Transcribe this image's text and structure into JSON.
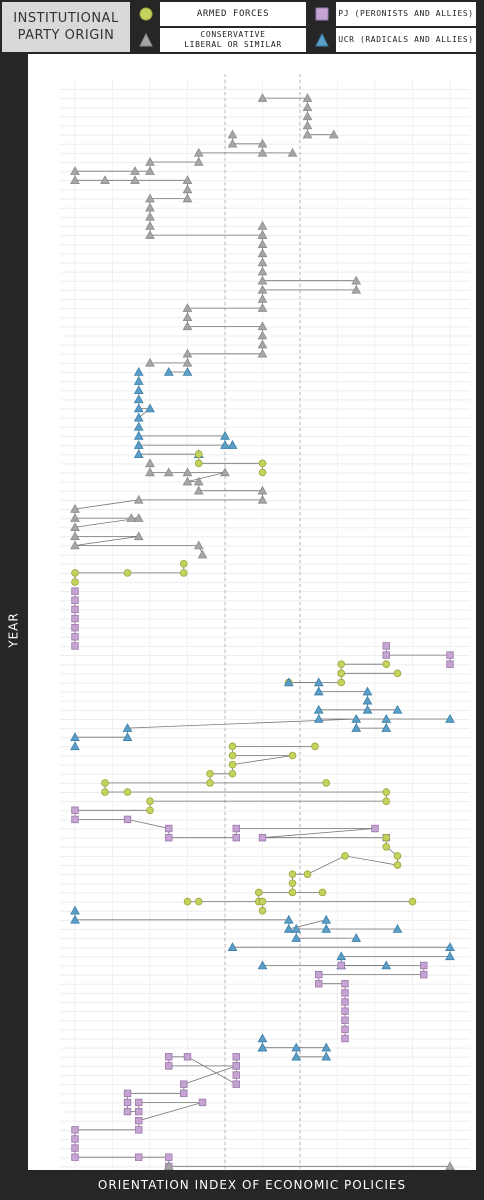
{
  "legend": {
    "title_line1": "INSTITUTIONAL",
    "title_line2": "PARTY ORIGIN",
    "items": [
      {
        "label": "ARMED FORCES",
        "shape": "circle",
        "color": "#c5d25e",
        "stroke": "#9aa63c"
      },
      {
        "label": "PJ (PERONISTS AND ALLIES)",
        "shape": "square",
        "color": "#c5a3d3",
        "stroke": "#9b78ab"
      },
      {
        "label_line1": "CONSERVATIVE",
        "label_line2": "LIBERAL OR SIMILAR",
        "shape": "triangle",
        "color": "#a6a6a6",
        "stroke": "#8c8c8c"
      },
      {
        "label": "UCR (RADICALS AND ALLIES)",
        "shape": "triangle",
        "color": "#5b9fc9",
        "stroke": "#3b7fa9"
      }
    ]
  },
  "chart_data": {
    "type": "scatter",
    "xlabel": "ORIENTATION INDEX OF ECONOMIC POLICIES",
    "ylabel": "YEAR",
    "xlim": [
      0,
      100
    ],
    "reference_lines_x": [
      40,
      60
    ],
    "grid": true,
    "segments": [
      {
        "party": "conservative",
        "points": [
          [
            50,
            1
          ],
          [
            62,
            1
          ],
          [
            62,
            2
          ],
          [
            62,
            3
          ],
          [
            62,
            4
          ],
          [
            62,
            5
          ],
          [
            69,
            5
          ]
        ]
      },
      {
        "party": "conservative",
        "points": [
          [
            42,
            5
          ],
          [
            42,
            6
          ],
          [
            50,
            6
          ],
          [
            50,
            7
          ],
          [
            58,
            7
          ],
          [
            33,
            7
          ],
          [
            33,
            8
          ],
          [
            20,
            8
          ],
          [
            20,
            9
          ],
          [
            16,
            9
          ],
          [
            0,
            9
          ],
          [
            0,
            10
          ],
          [
            8,
            10
          ],
          [
            16,
            10
          ],
          [
            30,
            10
          ],
          [
            30,
            11
          ],
          [
            30,
            12
          ],
          [
            20,
            12
          ],
          [
            20,
            13
          ],
          [
            20,
            14
          ],
          [
            20,
            15
          ],
          [
            20,
            16
          ],
          [
            50,
            16
          ]
        ]
      },
      {
        "party": "conservative",
        "points": [
          [
            50,
            15
          ],
          [
            50,
            16
          ],
          [
            50,
            17
          ],
          [
            50,
            18
          ],
          [
            50,
            19
          ],
          [
            50,
            20
          ],
          [
            50,
            21
          ],
          [
            75,
            21
          ],
          [
            75,
            22
          ],
          [
            50,
            22
          ],
          [
            50,
            23
          ],
          [
            50,
            24
          ],
          [
            30,
            24
          ],
          [
            30,
            25
          ],
          [
            30,
            26
          ],
          [
            50,
            26
          ],
          [
            50,
            27
          ],
          [
            50,
            28
          ],
          [
            50,
            29
          ],
          [
            30,
            29
          ],
          [
            30,
            30
          ],
          [
            20,
            30
          ]
        ]
      },
      {
        "party": "ucr",
        "points": [
          [
            25,
            31
          ],
          [
            30,
            31
          ]
        ]
      },
      {
        "party": "ucr",
        "points": [
          [
            17,
            31
          ],
          [
            17,
            32
          ],
          [
            17,
            33
          ],
          [
            17,
            34
          ],
          [
            17,
            35
          ],
          [
            20,
            35
          ],
          [
            17,
            36
          ],
          [
            17,
            37
          ],
          [
            17,
            38
          ],
          [
            40,
            38
          ],
          [
            40,
            39
          ],
          [
            42,
            39
          ],
          [
            17,
            39
          ],
          [
            17,
            40
          ],
          [
            33,
            40
          ]
        ]
      },
      {
        "party": "armed",
        "points": [
          [
            33,
            40
          ],
          [
            33,
            41
          ],
          [
            50,
            41
          ],
          [
            50,
            42
          ]
        ]
      },
      {
        "party": "conservative",
        "points": [
          [
            20,
            41
          ],
          [
            20,
            42
          ],
          [
            25,
            42
          ],
          [
            30,
            42
          ],
          [
            40,
            42
          ],
          [
            30,
            43
          ],
          [
            33,
            43
          ],
          [
            33,
            44
          ],
          [
            50,
            44
          ],
          [
            50,
            45
          ],
          [
            17,
            45
          ],
          [
            0,
            46
          ],
          [
            0,
            47
          ],
          [
            15,
            47
          ],
          [
            17,
            47
          ],
          [
            0,
            48
          ],
          [
            0,
            49
          ],
          [
            17,
            49
          ],
          [
            0,
            50
          ],
          [
            33,
            50
          ],
          [
            34,
            51
          ]
        ]
      },
      {
        "party": "armed",
        "points": [
          [
            29,
            52
          ],
          [
            29,
            53
          ],
          [
            14,
            53
          ],
          [
            0,
            53
          ],
          [
            0,
            54
          ]
        ]
      },
      {
        "party": "pj",
        "points": [
          [
            0,
            55
          ],
          [
            0,
            56
          ],
          [
            0,
            57
          ],
          [
            0,
            58
          ],
          [
            0,
            59
          ],
          [
            0,
            60
          ],
          [
            0,
            61
          ]
        ]
      },
      {
        "party": "pj",
        "points": [
          [
            83,
            61
          ],
          [
            83,
            62
          ],
          [
            100,
            62
          ],
          [
            100,
            63
          ]
        ]
      },
      {
        "party": "armed",
        "points": [
          [
            83,
            63
          ],
          [
            71,
            63
          ],
          [
            71,
            64
          ],
          [
            86,
            64
          ],
          [
            71,
            64
          ],
          [
            71,
            65
          ],
          [
            57,
            65
          ]
        ]
      },
      {
        "party": "ucr",
        "points": [
          [
            57,
            65
          ],
          [
            65,
            65
          ],
          [
            65,
            66
          ],
          [
            78,
            66
          ],
          [
            78,
            67
          ],
          [
            78,
            68
          ],
          [
            86,
            68
          ],
          [
            65,
            68
          ],
          [
            65,
            69
          ],
          [
            100,
            69
          ],
          [
            83,
            69
          ],
          [
            83,
            70
          ],
          [
            75,
            70
          ],
          [
            75,
            69
          ],
          [
            14,
            70
          ],
          [
            14,
            71
          ],
          [
            0,
            71
          ],
          [
            0,
            72
          ]
        ]
      },
      {
        "party": "armed",
        "points": [
          [
            64,
            72
          ],
          [
            42,
            72
          ],
          [
            42,
            73
          ],
          [
            58,
            73
          ],
          [
            42,
            74
          ],
          [
            42,
            75
          ],
          [
            36,
            75
          ],
          [
            36,
            76
          ],
          [
            67,
            76
          ],
          [
            8,
            76
          ],
          [
            8,
            77
          ],
          [
            14,
            77
          ],
          [
            83,
            77
          ],
          [
            83,
            78
          ],
          [
            20,
            78
          ],
          [
            20,
            79
          ],
          [
            0,
            79
          ]
        ]
      },
      {
        "party": "pj",
        "points": [
          [
            0,
            79
          ],
          [
            0,
            80
          ],
          [
            14,
            80
          ],
          [
            25,
            81
          ],
          [
            25,
            82
          ],
          [
            43,
            82
          ],
          [
            43,
            81
          ],
          [
            80,
            81
          ],
          [
            50,
            82
          ],
          [
            83,
            82
          ]
        ]
      },
      {
        "party": "armed",
        "points": [
          [
            83,
            82
          ],
          [
            83,
            83
          ],
          [
            86,
            84
          ],
          [
            86,
            85
          ],
          [
            72,
            84
          ],
          [
            62,
            86
          ],
          [
            58,
            86
          ],
          [
            58,
            87
          ],
          [
            58,
            88
          ],
          [
            66,
            88
          ],
          [
            49,
            88
          ],
          [
            49,
            89
          ],
          [
            90,
            89
          ],
          [
            30,
            89
          ],
          [
            33,
            89
          ],
          [
            50,
            89
          ],
          [
            50,
            90
          ]
        ]
      },
      {
        "party": "ucr",
        "points": [
          [
            0,
            90
          ],
          [
            0,
            91
          ],
          [
            57,
            91
          ],
          [
            57,
            92
          ],
          [
            67,
            91
          ],
          [
            67,
            92
          ],
          [
            86,
            92
          ],
          [
            59,
            92
          ],
          [
            59,
            93
          ],
          [
            75,
            93
          ]
        ]
      },
      {
        "party": "ucr",
        "points": [
          [
            42,
            94
          ],
          [
            100,
            94
          ],
          [
            100,
            95
          ],
          [
            71,
            95
          ],
          [
            71,
            96
          ],
          [
            50,
            96
          ],
          [
            83,
            96
          ]
        ]
      },
      {
        "party": "pj",
        "points": [
          [
            71,
            96
          ],
          [
            93,
            96
          ],
          [
            93,
            97
          ],
          [
            65,
            97
          ],
          [
            65,
            98
          ],
          [
            72,
            98
          ],
          [
            72,
            99
          ],
          [
            72,
            100
          ],
          [
            72,
            101
          ],
          [
            72,
            102
          ],
          [
            72,
            103
          ],
          [
            72,
            104
          ]
        ]
      },
      {
        "party": "ucr",
        "points": [
          [
            50,
            104
          ],
          [
            50,
            105
          ],
          [
            59,
            105
          ],
          [
            59,
            106
          ],
          [
            67,
            106
          ],
          [
            67,
            105
          ],
          [
            50,
            105
          ]
        ]
      },
      {
        "party": "pj",
        "points": [
          [
            43,
            106
          ],
          [
            43,
            107
          ],
          [
            43,
            108
          ],
          [
            43,
            109
          ],
          [
            30,
            106
          ],
          [
            25,
            106
          ],
          [
            25,
            107
          ],
          [
            43,
            107
          ],
          [
            29,
            109
          ],
          [
            29,
            110
          ],
          [
            14,
            110
          ],
          [
            14,
            111
          ],
          [
            14,
            112
          ],
          [
            17,
            112
          ],
          [
            17,
            111
          ],
          [
            34,
            111
          ],
          [
            17,
            113
          ],
          [
            17,
            114
          ],
          [
            0,
            114
          ],
          [
            0,
            115
          ],
          [
            0,
            116
          ],
          [
            0,
            117
          ],
          [
            17,
            117
          ],
          [
            25,
            117
          ],
          [
            25,
            118
          ]
        ]
      },
      {
        "party": "conservative",
        "points": [
          [
            25,
            118
          ],
          [
            100,
            118
          ],
          [
            100,
            119
          ],
          [
            100,
            120
          ],
          [
            100,
            121
          ],
          [
            71,
            121
          ],
          [
            43,
            122
          ],
          [
            17,
            122
          ]
        ]
      }
    ]
  }
}
